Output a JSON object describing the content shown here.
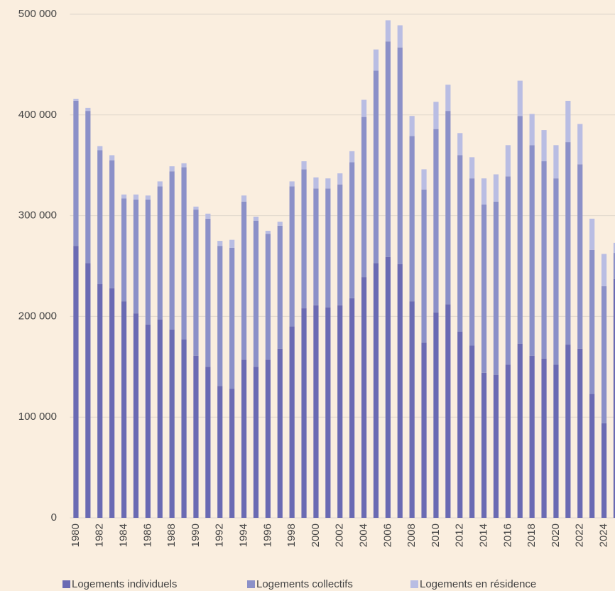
{
  "chart_data": {
    "type": "stacked-bar",
    "categories": [
      "1980",
      null,
      "1982",
      null,
      "1984",
      null,
      "1986",
      null,
      "1988",
      null,
      "1990",
      null,
      "1992",
      null,
      "1994",
      null,
      "1996",
      null,
      "1998",
      null,
      "2000",
      null,
      "2002",
      null,
      "2004",
      null,
      "2006",
      null,
      "2008",
      null,
      "2010",
      null,
      "2012",
      null,
      "2014",
      null,
      "2016",
      null,
      "2018",
      null,
      "2020",
      null,
      "2022",
      null,
      "2024",
      null
    ],
    "series": [
      {
        "name": "Logements individuels",
        "color": "#6a6ab3",
        "values": [
          270000,
          253000,
          232000,
          228000,
          215000,
          203000,
          192000,
          197000,
          187000,
          177000,
          161000,
          150000,
          131000,
          128000,
          157000,
          150000,
          157000,
          168000,
          190000,
          208000,
          211000,
          209000,
          211000,
          218000,
          239000,
          253000,
          259000,
          252000,
          215000,
          174000,
          204000,
          212000,
          185000,
          171000,
          144000,
          142000,
          152000,
          173000,
          161000,
          158000,
          152000,
          172000,
          168000,
          123000,
          94000,
          237000
        ]
      },
      {
        "name": "Logements collectifs",
        "color": "#8b90c8",
        "values": [
          144000,
          151000,
          133000,
          127000,
          102000,
          113000,
          124000,
          132000,
          157000,
          171000,
          145000,
          147000,
          139000,
          140000,
          157000,
          145000,
          125000,
          122000,
          139000,
          138000,
          116000,
          118000,
          120000,
          135000,
          159000,
          191000,
          214000,
          215000,
          164000,
          152000,
          182000,
          192000,
          175000,
          166000,
          167000,
          172000,
          187000,
          226000,
          209000,
          196000,
          185000,
          201000,
          183000,
          143000,
          136000,
          26000
        ]
      },
      {
        "name": "Logements en résidence",
        "color": "#b9bde3",
        "values": [
          2000,
          3000,
          4000,
          5000,
          4000,
          5000,
          4000,
          5000,
          5000,
          4000,
          3000,
          5000,
          5000,
          8000,
          6000,
          4000,
          3000,
          4000,
          5000,
          8000,
          11000,
          10000,
          11000,
          11000,
          17000,
          21000,
          21000,
          22000,
          20000,
          20000,
          27000,
          26000,
          22000,
          21000,
          26000,
          27000,
          31000,
          35000,
          31000,
          31000,
          33000,
          41000,
          40000,
          31000,
          32000,
          10000
        ]
      }
    ],
    "ylim": [
      0,
      500000
    ],
    "yticks": [
      0,
      {
        "value": 100000,
        "label": "100 000"
      },
      {
        "value": 200000,
        "label": "200 000"
      },
      {
        "value": 300000,
        "label": "300 000"
      },
      {
        "value": 400000,
        "label": "400 000"
      },
      {
        "value": 500000,
        "label": "500 000"
      }
    ],
    "grid": true
  }
}
